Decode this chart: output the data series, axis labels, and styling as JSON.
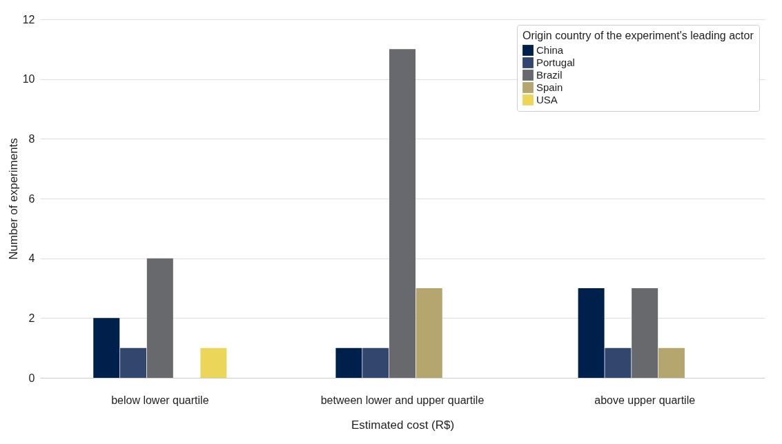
{
  "chart_data": {
    "type": "bar",
    "xlabel": "Estimated cost (R$)",
    "ylabel": "Number of experiments",
    "legend_title": "Origin country of the experiment's leading actor",
    "categories": [
      "below lower quartile",
      "between lower and upper quartile",
      "above upper quartile"
    ],
    "series": [
      {
        "name": "China",
        "color": "#00204c",
        "values": [
          2,
          1,
          3
        ]
      },
      {
        "name": "Portugal",
        "color": "#33466e",
        "values": [
          1,
          1,
          1
        ]
      },
      {
        "name": "Brazil",
        "color": "#68696d",
        "values": [
          4,
          11,
          3
        ]
      },
      {
        "name": "Spain",
        "color": "#b4a66e",
        "values": [
          0,
          3,
          1
        ]
      },
      {
        "name": "USA",
        "color": "#ecd65a",
        "values": [
          1,
          0,
          0
        ]
      }
    ],
    "ylim": [
      0,
      12
    ],
    "yticks": [
      0,
      2,
      4,
      6,
      8,
      10,
      12
    ],
    "grid": "y",
    "legend": "top right"
  }
}
